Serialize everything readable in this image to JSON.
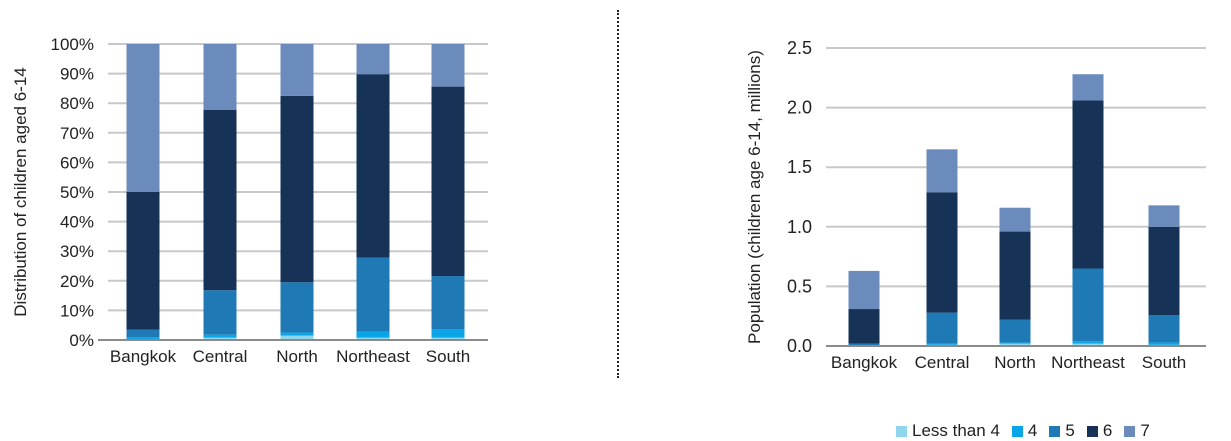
{
  "colors": {
    "Less than 4": "#8ed6ee",
    "4": "#0aa5e6",
    "5": "#1e79b5",
    "6": "#163257",
    "7": "#6b8bbd",
    "grid": "#c8c8c8"
  },
  "legend": [
    "Less than 4",
    "4",
    "5",
    "6",
    "7"
  ],
  "chart_data": [
    {
      "type": "bar",
      "stacked": true,
      "categories": [
        "Bangkok",
        "Central",
        "North",
        "Northeast",
        "South"
      ],
      "ylabel": "Distribution of children aged 6-14",
      "ylim": [
        0,
        100
      ],
      "yticks": [
        "0%",
        "10%",
        "20%",
        "30%",
        "40%",
        "50%",
        "60%",
        "70%",
        "80%",
        "90%",
        "100%"
      ],
      "grid": true,
      "series": [
        {
          "name": "Less than 4",
          "values": [
            0.2,
            0.8,
            1.5,
            0.8,
            0.8
          ]
        },
        {
          "name": "4",
          "values": [
            0.8,
            1.0,
            1.0,
            2.0,
            2.8
          ]
        },
        {
          "name": "5",
          "values": [
            2.5,
            15.0,
            17.0,
            25.0,
            18.0
          ]
        },
        {
          "name": "6",
          "values": [
            46.5,
            61.0,
            63.0,
            62.0,
            64.0
          ]
        },
        {
          "name": "7",
          "values": [
            50.0,
            22.2,
            17.5,
            10.2,
            14.4
          ]
        }
      ]
    },
    {
      "type": "bar",
      "stacked": true,
      "categories": [
        "Bangkok",
        "Central",
        "North",
        "Northeast",
        "South"
      ],
      "ylabel": "Population (children age 6-14, millions)",
      "ylim": [
        0,
        2.5
      ],
      "yticks": [
        "0.0",
        "0.5",
        "1.0",
        "1.5",
        "2.0",
        "2.5"
      ],
      "grid": true,
      "series": [
        {
          "name": "Less than 4",
          "values": [
            0.0,
            0.01,
            0.02,
            0.02,
            0.01
          ]
        },
        {
          "name": "4",
          "values": [
            0.005,
            0.01,
            0.01,
            0.02,
            0.02
          ]
        },
        {
          "name": "5",
          "values": [
            0.015,
            0.26,
            0.19,
            0.61,
            0.23
          ]
        },
        {
          "name": "6",
          "values": [
            0.29,
            1.01,
            0.74,
            1.41,
            0.74
          ]
        },
        {
          "name": "7",
          "values": [
            0.32,
            0.36,
            0.2,
            0.22,
            0.18
          ]
        }
      ],
      "legend_position": "bottom-right"
    }
  ]
}
